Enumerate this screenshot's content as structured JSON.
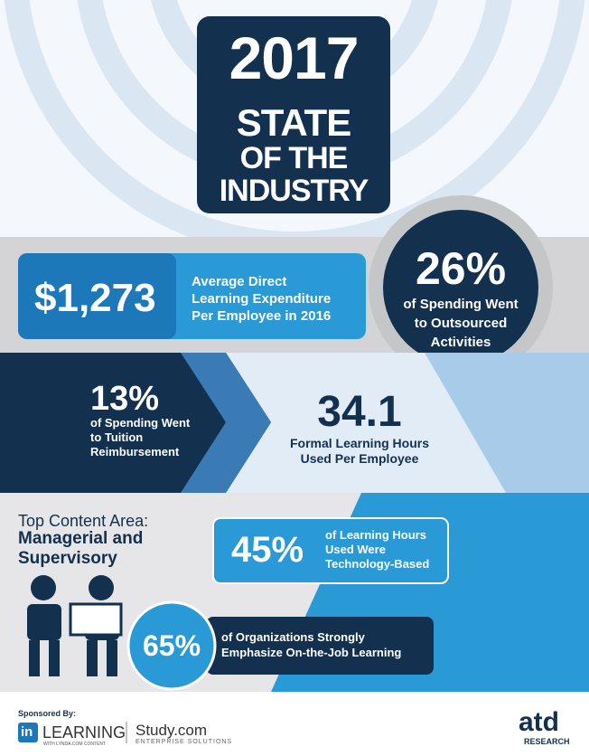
{
  "header": {
    "year": "2017",
    "title_lines": [
      "STATE",
      "OF THE",
      "INDUSTRY"
    ]
  },
  "expenditure": {
    "value": "$1,273",
    "lines": [
      "Average Direct",
      "Learning Expenditure",
      "Per Employee in 2016"
    ]
  },
  "outsourced": {
    "value": "26%",
    "lines": [
      "of Spending Went",
      "to Outsourced",
      "Activities"
    ]
  },
  "tuition": {
    "value": "13%",
    "lines": [
      "of Spending Went",
      "to Tuition",
      "Reimbursement"
    ]
  },
  "hours": {
    "value": "34.1",
    "lines": [
      "Formal Learning Hours",
      "Used Per Employee"
    ]
  },
  "content_area": {
    "intro": "Top Content Area:",
    "lines": [
      "Managerial and",
      "Supervisory"
    ]
  },
  "technology": {
    "value": "45%",
    "lines": [
      "of Learning Hours",
      "Used Were",
      "Technology-Based"
    ]
  },
  "on_the_job": {
    "value": "65%",
    "lines": [
      "of Organizations Strongly",
      "Emphasize On-the-Job Learning"
    ]
  },
  "footer": {
    "sponsored": "Sponsored By:",
    "learning": "LEARNING",
    "learning_sub": "WITH LYNDA.COM CONTENT",
    "study": "Study.com",
    "study_sub": "ENTERPRISE SOLUTIONS",
    "atd": "atd",
    "atd_sub": "RESEARCH"
  }
}
